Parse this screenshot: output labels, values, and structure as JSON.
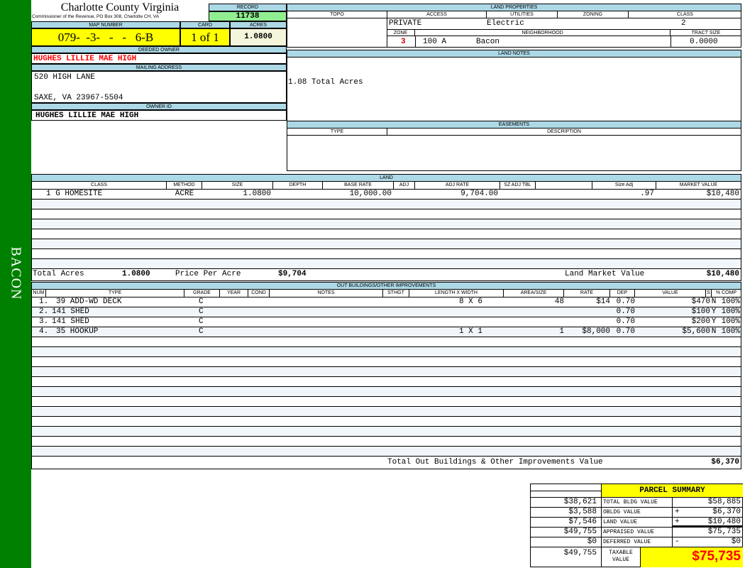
{
  "sidebar": {
    "label": "BACON",
    "color": "#008000"
  },
  "header": {
    "county": "Charlotte County Virginia",
    "office": "Commissioner of the Revenue, PO Box 308, Charlotte CH, VA",
    "record_label": "RECORD",
    "record": "11738",
    "map_label": "MAP NUMBER",
    "map_number": "079-  -3-   -   -   6-B",
    "card_label": "CARD",
    "card": "1 of 1",
    "acres_label": "ACRES",
    "acres": "1.0800"
  },
  "owner": {
    "deeded_label": "DEEDED OWNER",
    "deeded": "HUGHES LILLIE MAE HIGH",
    "mailing_label": "MAILING ADDRESS",
    "address1": "520 HIGH LANE",
    "address2": "SAXE, VA 23967-5504",
    "id_label": "OWNER ID",
    "id": "HUGHES LILLIE MAE HIGH"
  },
  "land_properties": {
    "title": "LAND PROPERTIES",
    "topo_label": "TOPO",
    "access_label": "ACCESS",
    "utilities_label": "UTILITIES",
    "zoning_label": "ZONING",
    "class_label": "CLASS",
    "access": "PRIVATE",
    "utilities": "Electric",
    "class": "2",
    "zone_label": "ZONE",
    "neighborhood_label": "NEIGHBORHOOD",
    "tract_label": "TRACT SIZE",
    "zone": "3",
    "neighborhood_code": "100 A",
    "neighborhood": "Bacon",
    "tract_size": "0.0000"
  },
  "land_notes": {
    "title": "LAND NOTES",
    "text": "1.08 Total Acres"
  },
  "easements": {
    "title": "EASEMENTS",
    "type_label": "TYPE",
    "desc_label": "DESCRIPTION"
  },
  "land": {
    "title": "LAND",
    "columns": [
      "CLASS",
      "METHOD",
      "SIZE",
      "DEPTH",
      "BASE RATE",
      "ADJ",
      "ADJ RATE",
      "SZ ADJ TBL",
      "",
      "Size Adj",
      "MARKET VALUE"
    ],
    "rows": [
      [
        "1 G HOMESITE",
        "ACRE",
        "1.0800",
        "",
        "10,000.00",
        "",
        "9,704.00",
        "",
        "",
        ".97",
        "$10,480"
      ]
    ],
    "total_acres_label": "Total Acres",
    "total_acres": "1.0800",
    "price_label": "Price Per Acre",
    "price": "$9,704",
    "market_label": "Land Market Value",
    "market": "$10,480"
  },
  "outbuildings": {
    "title": "OUT BUILDINGS/OTHER IMPROVEMENTS",
    "columns": [
      "NUM",
      "TYPE",
      "GRADE",
      "YEAR",
      "COND",
      "NOTES",
      "STHGT",
      "LENGTH X WIDTH",
      "AREA/SIZE",
      "RATE",
      "DEP",
      "VALUE",
      "S",
      "% COMP"
    ],
    "rows": [
      [
        "1.",
        "39  ADD-WD DECK",
        "C",
        "",
        "",
        "",
        "",
        "8 X 6",
        "48",
        "$14",
        "0.70",
        "$470",
        "N",
        "100%"
      ],
      [
        "2.",
        "141  SHED",
        "C",
        "",
        "",
        "",
        "",
        "",
        "",
        "",
        "0.70",
        "$100",
        "Y",
        "100%"
      ],
      [
        "3.",
        "141  SHED",
        "C",
        "",
        "",
        "",
        "",
        "",
        "",
        "",
        "0.70",
        "$200",
        "Y",
        "100%"
      ],
      [
        "4.",
        "35  HOOKUP",
        "C",
        "",
        "",
        "",
        "",
        "1 X 1",
        "1",
        "$8,000",
        "0.70",
        "$5,600",
        "N",
        "100%"
      ]
    ],
    "total_label": "Total Out Buildings & Other Improvements Value",
    "total": "$6,370"
  },
  "summary": {
    "title": "PARCEL SUMMARY",
    "rows": [
      {
        "left": "$38,621",
        "label": "TOTAL BLDG VALUE",
        "op": "",
        "value": "$58,885"
      },
      {
        "left": "$3,588",
        "label": "OBLDG VALUE",
        "op": "+",
        "value": "$6,370"
      },
      {
        "left": "$7,546",
        "label": "LAND VALUE",
        "op": "+",
        "value": "$10,480"
      },
      {
        "left": "$49,755",
        "label": "APPRAISED VALUE",
        "op": "",
        "value": "$75,735"
      },
      {
        "left": "$0",
        "label": "DEFERRED VALUE",
        "op": "-",
        "value": "$0"
      }
    ],
    "taxable_left": "$49,755",
    "taxable_label": "TAXABLE VALUE",
    "taxable": "$75,735"
  },
  "colors": {
    "header_blue": "#add8e6",
    "highlight_yellow": "#ffff00",
    "record_green": "#90ee90",
    "owner_red": "#ff0000"
  }
}
